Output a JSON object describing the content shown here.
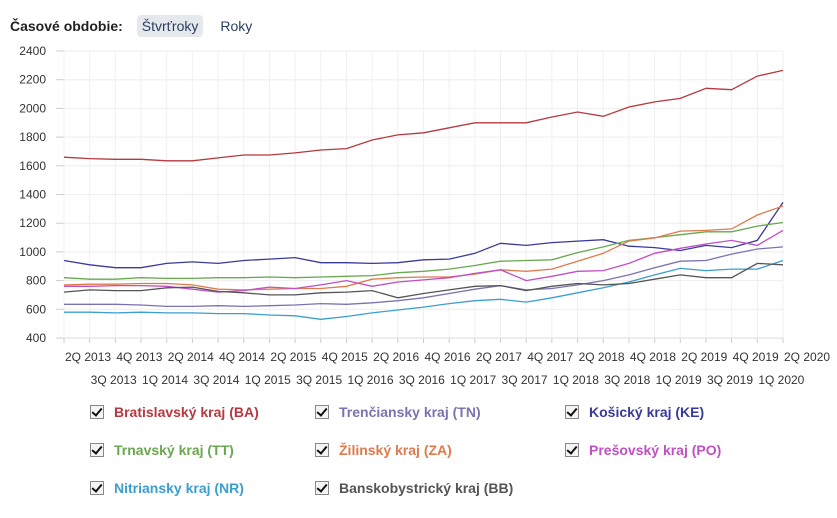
{
  "header": {
    "label": "Časové obdobie:",
    "options": [
      {
        "label": "Štvrťroky",
        "active": true
      },
      {
        "label": "Roky",
        "active": false
      }
    ]
  },
  "chart_data": {
    "type": "line",
    "title": "",
    "xlabel": "",
    "ylabel": "",
    "ylim": [
      400,
      2400
    ],
    "yticks": [
      400,
      600,
      800,
      1000,
      1200,
      1400,
      1600,
      1800,
      2000,
      2200,
      2400
    ],
    "grid": true,
    "legend_placement": "bottom",
    "categories": [
      "2Q 2013",
      "3Q 2013",
      "4Q 2013",
      "1Q 2014",
      "2Q 2014",
      "3Q 2014",
      "4Q 2014",
      "1Q 2015",
      "2Q 2015",
      "3Q 2015",
      "4Q 2015",
      "1Q 2016",
      "2Q 2016",
      "3Q 2016",
      "4Q 2016",
      "1Q 2017",
      "2Q 2017",
      "3Q 2017",
      "4Q 2017",
      "1Q 2018",
      "2Q 2018",
      "3Q 2018",
      "4Q 2018",
      "1Q 2019",
      "2Q 2019",
      "3Q 2019",
      "4Q 2019",
      "1Q 2020",
      "2Q 2020"
    ],
    "series": [
      {
        "name": "Bratislavský kraj (BA)",
        "color": "#b8383f",
        "checked": true,
        "values": [
          1660,
          1650,
          1645,
          1645,
          1635,
          1635,
          1655,
          1675,
          1675,
          1690,
          1710,
          1720,
          1780,
          1815,
          1830,
          1865,
          1900,
          1900,
          1900,
          1940,
          1975,
          1945,
          2010,
          2045,
          2070,
          2140,
          2130,
          2225,
          2265
        ]
      },
      {
        "name": "Trenčiansky kraj (TN)",
        "color": "#7b72b0",
        "checked": true,
        "values": [
          635,
          635,
          635,
          630,
          620,
          620,
          625,
          620,
          625,
          630,
          640,
          635,
          645,
          660,
          680,
          710,
          740,
          765,
          735,
          745,
          770,
          800,
          840,
          890,
          935,
          940,
          985,
          1020,
          1035
        ]
      },
      {
        "name": "Košický kraj (KE)",
        "color": "#3a3a9a",
        "checked": true,
        "values": [
          940,
          910,
          890,
          890,
          920,
          930,
          920,
          940,
          950,
          960,
          925,
          925,
          920,
          925,
          945,
          950,
          990,
          1060,
          1045,
          1065,
          1075,
          1085,
          1040,
          1030,
          1010,
          1045,
          1030,
          1080,
          1345
        ]
      },
      {
        "name": "Trnavský kraj (TT)",
        "color": "#6aa84f",
        "checked": true,
        "values": [
          820,
          810,
          810,
          820,
          815,
          815,
          820,
          820,
          825,
          820,
          825,
          830,
          835,
          855,
          865,
          880,
          905,
          935,
          940,
          945,
          995,
          1035,
          1080,
          1100,
          1120,
          1140,
          1140,
          1180,
          1205
        ]
      },
      {
        "name": "Žilinský kraj (ZA)",
        "color": "#e07a4c",
        "checked": true,
        "values": [
          770,
          775,
          775,
          780,
          780,
          770,
          740,
          735,
          740,
          745,
          745,
          760,
          810,
          820,
          825,
          825,
          845,
          875,
          865,
          880,
          935,
          990,
          1075,
          1097,
          1145,
          1150,
          1160,
          1257,
          1320
        ]
      },
      {
        "name": "Prešovský kraj (PO)",
        "color": "#c04fc4",
        "checked": true,
        "values": [
          760,
          760,
          765,
          765,
          760,
          740,
          720,
          730,
          755,
          745,
          770,
          800,
          760,
          790,
          805,
          820,
          850,
          875,
          800,
          830,
          865,
          870,
          920,
          990,
          1025,
          1055,
          1080,
          1045,
          1150
        ]
      },
      {
        "name": "Nitriansky kraj (NR)",
        "color": "#3a9fd0",
        "checked": true,
        "values": [
          580,
          580,
          575,
          580,
          575,
          575,
          570,
          570,
          560,
          555,
          530,
          550,
          575,
          595,
          615,
          640,
          660,
          670,
          650,
          680,
          715,
          750,
          790,
          840,
          885,
          870,
          880,
          880,
          940
        ]
      },
      {
        "name": "Banskobystrický kraj (BB)",
        "color": "#555555",
        "checked": true,
        "values": [
          720,
          735,
          730,
          730,
          750,
          755,
          725,
          715,
          700,
          700,
          715,
          720,
          730,
          680,
          710,
          735,
          760,
          765,
          730,
          760,
          780,
          770,
          780,
          810,
          840,
          820,
          820,
          920,
          910
        ]
      }
    ]
  }
}
